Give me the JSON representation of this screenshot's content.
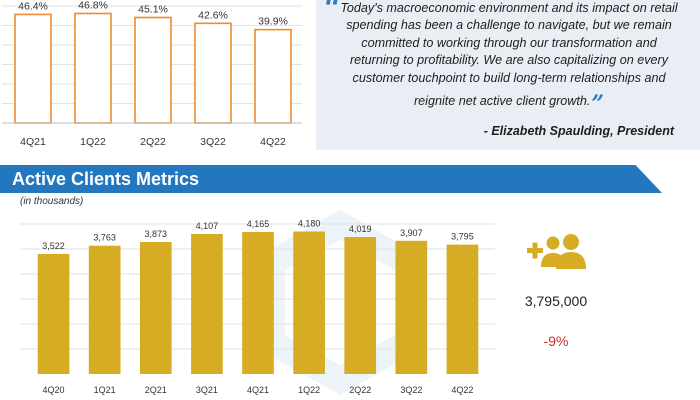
{
  "colors": {
    "accent_blue": "#2277bf",
    "orange": "#f08a2c",
    "gold": "#d6ac24",
    "quote_bg": "#e9eef5",
    "negative_red": "#c8302f"
  },
  "quote": {
    "text": "Today's macroeconomic environment and its impact on retail spending has been a challenge to navigate, but we remain committed to working through our transformation and returning to profitability. We are also capitalizing on every customer touchpoint to build long-term relationships and reignite net active client growth.",
    "author": "- Elizabeth Spaulding, President"
  },
  "section": {
    "title": "Active Clients Metrics",
    "units_note": "(in thousands)"
  },
  "stats": {
    "icon": "add-users-icon",
    "value": "3,795,000",
    "change": "-9%"
  },
  "chart_data": [
    {
      "type": "bar",
      "style": "outline",
      "categories": [
        "4Q21",
        "1Q22",
        "2Q22",
        "3Q22",
        "4Q22"
      ],
      "values": [
        46.4,
        46.8,
        45.1,
        42.6,
        39.9
      ],
      "labels": [
        "46.4%",
        "46.8%",
        "45.1%",
        "42.6%",
        "39.9%"
      ],
      "ylim": [
        0,
        50
      ],
      "grid": true
    },
    {
      "type": "bar",
      "style": "filled",
      "categories": [
        "4Q20",
        "1Q21",
        "2Q21",
        "3Q21",
        "4Q21",
        "1Q22",
        "2Q22",
        "3Q22",
        "4Q22"
      ],
      "values": [
        3522,
        3763,
        3873,
        4107,
        4165,
        4180,
        4019,
        3907,
        3795
      ],
      "labels": [
        "3,522",
        "3,763",
        "3,873",
        "4,107",
        "4,165",
        "4,180",
        "4,019",
        "3,907",
        "3,795"
      ],
      "ylim": [
        0,
        4400
      ],
      "grid": true
    }
  ]
}
